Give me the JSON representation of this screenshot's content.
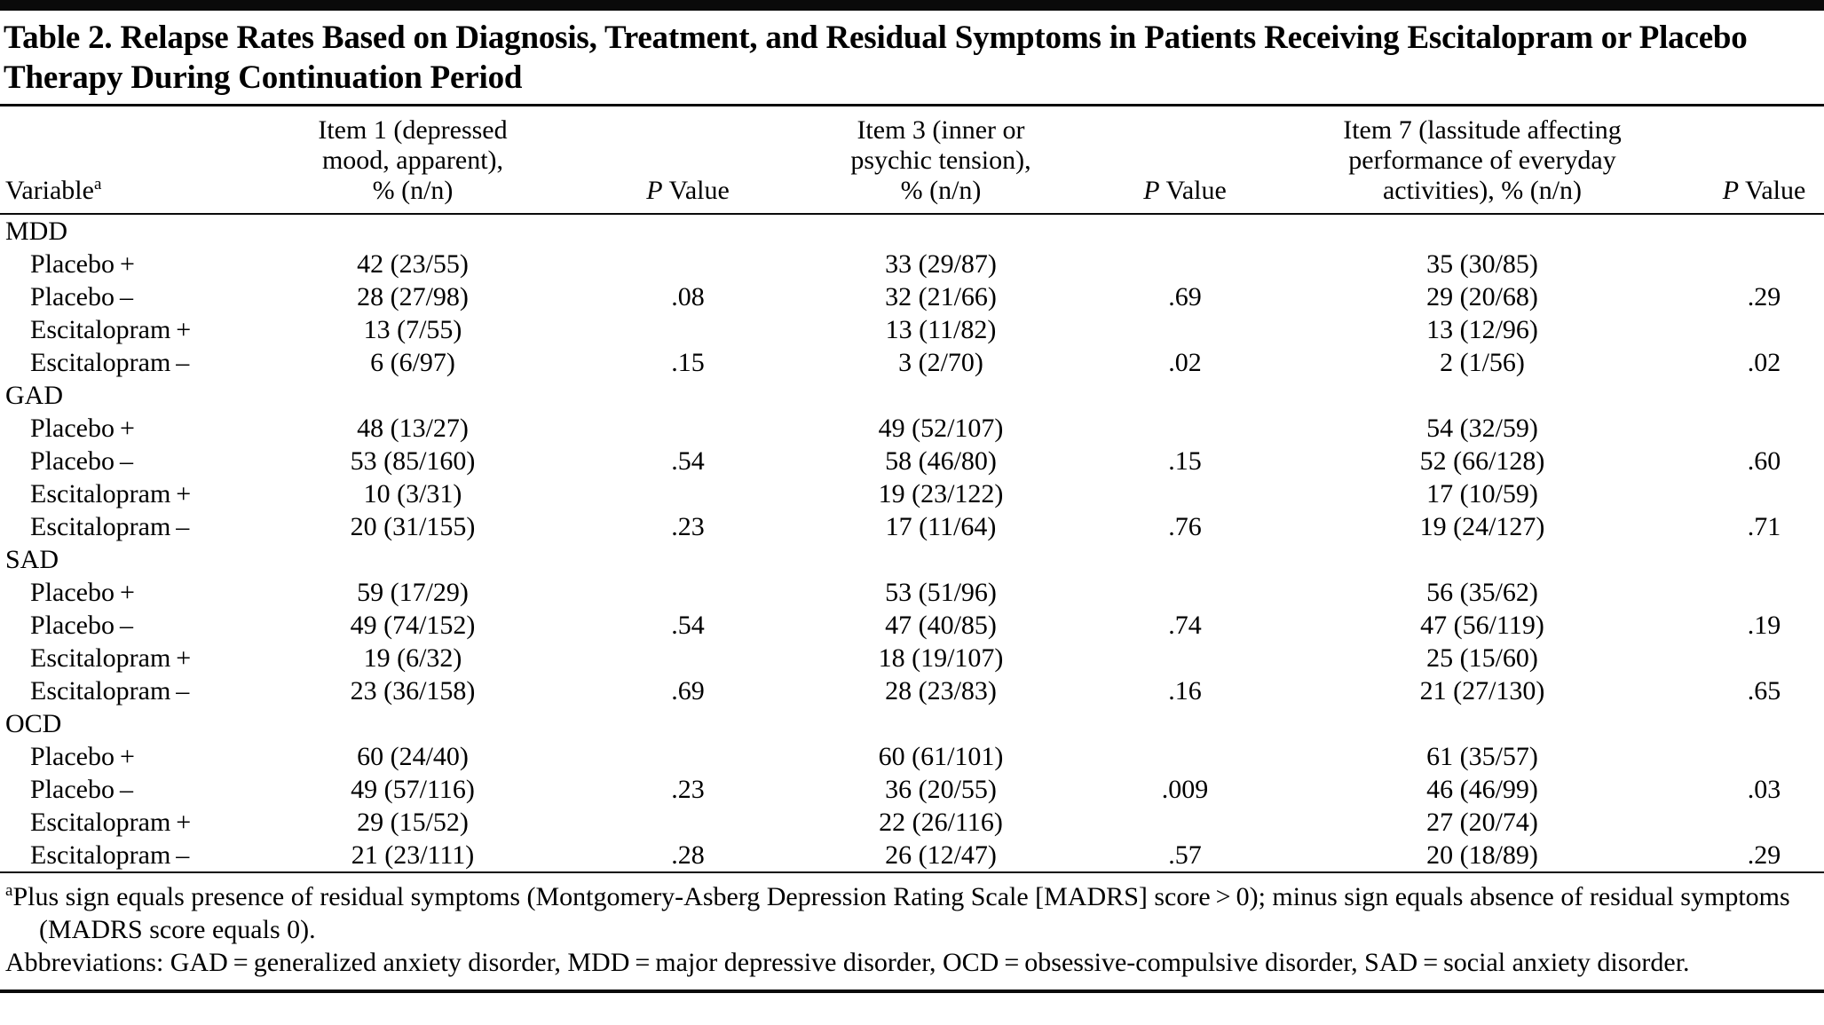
{
  "title": "Table 2. Relapse Rates Based on Diagnosis, Treatment, and Residual Symptoms in Patients Receiving Escitalopram or Placebo Therapy During Continuation Period",
  "columns": [
    {
      "id": "variable",
      "header_lines": [
        "Variable"
      ],
      "superscript": "a",
      "align": "left"
    },
    {
      "id": "item1-pct",
      "header_lines": [
        "Item 1 (depressed",
        "mood, apparent),",
        "% (n/n)"
      ]
    },
    {
      "id": "p-value-1",
      "header_lines": [
        "P Value"
      ],
      "italic_first_letter": true
    },
    {
      "id": "item3-pct",
      "header_lines": [
        "Item 3 (inner or",
        "psychic tension),",
        "% (n/n)"
      ]
    },
    {
      "id": "p-value-2",
      "header_lines": [
        "P Value"
      ],
      "italic_first_letter": true
    },
    {
      "id": "item7-pct",
      "header_lines": [
        "Item 7 (lassitude affecting",
        "performance of everyday",
        "activities), % (n/n)"
      ]
    },
    {
      "id": "p-value-3",
      "header_lines": [
        "P Value"
      ],
      "italic_first_letter": true
    }
  ],
  "groups": [
    {
      "label": "MDD",
      "rows": [
        [
          "Placebo +",
          "42 (23/55)",
          "",
          "33 (29/87)",
          "",
          "35 (30/85)",
          ""
        ],
        [
          "Placebo –",
          "28 (27/98)",
          ".08",
          "32 (21/66)",
          ".69",
          "29 (20/68)",
          ".29"
        ],
        [
          "Escitalopram +",
          "13 (7/55)",
          "",
          "13 (11/82)",
          "",
          "13 (12/96)",
          ""
        ],
        [
          "Escitalopram –",
          "6 (6/97)",
          ".15",
          "3 (2/70)",
          ".02",
          "2 (1/56)",
          ".02"
        ]
      ]
    },
    {
      "label": "GAD",
      "rows": [
        [
          "Placebo +",
          "48 (13/27)",
          "",
          "49 (52/107)",
          "",
          "54 (32/59)",
          ""
        ],
        [
          "Placebo –",
          "53 (85/160)",
          ".54",
          "58 (46/80)",
          ".15",
          "52 (66/128)",
          ".60"
        ],
        [
          "Escitalopram +",
          "10 (3/31)",
          "",
          "19 (23/122)",
          "",
          "17 (10/59)",
          ""
        ],
        [
          "Escitalopram –",
          "20 (31/155)",
          ".23",
          "17 (11/64)",
          ".76",
          "19 (24/127)",
          ".71"
        ]
      ]
    },
    {
      "label": "SAD",
      "rows": [
        [
          "Placebo +",
          "59 (17/29)",
          "",
          "53 (51/96)",
          "",
          "56 (35/62)",
          ""
        ],
        [
          "Placebo –",
          "49 (74/152)",
          ".54",
          "47 (40/85)",
          ".74",
          "47 (56/119)",
          ".19"
        ],
        [
          "Escitalopram +",
          "19 (6/32)",
          "",
          "18 (19/107)",
          "",
          "25 (15/60)",
          ""
        ],
        [
          "Escitalopram –",
          "23 (36/158)",
          ".69",
          "28 (23/83)",
          ".16",
          "21 (27/130)",
          ".65"
        ]
      ]
    },
    {
      "label": "OCD",
      "rows": [
        [
          "Placebo +",
          "60 (24/40)",
          "",
          "60 (61/101)",
          "",
          "61 (35/57)",
          ""
        ],
        [
          "Placebo –",
          "49 (57/116)",
          ".23",
          "36 (20/55)",
          ".009",
          "46 (46/99)",
          ".03"
        ],
        [
          "Escitalopram +",
          "29 (15/52)",
          "",
          "22 (26/116)",
          "",
          "27 (20/74)",
          ""
        ],
        [
          "Escitalopram –",
          "21 (23/111)",
          ".28",
          "26 (12/47)",
          ".57",
          "20 (18/89)",
          ".29"
        ]
      ]
    }
  ],
  "footnotes": [
    {
      "superscript": "a",
      "text": "Plus sign equals presence of residual symptoms (Montgomery-Asberg Depression Rating Scale [MADRS] score > 0); minus sign equals absence of residual symptoms (MADRS score equals 0)."
    },
    {
      "superscript": "",
      "text": "Abbreviations: GAD = generalized anxiety disorder, MDD = major depressive disorder, OCD = obsessive-compulsive disorder, SAD = social anxiety disorder."
    }
  ]
}
